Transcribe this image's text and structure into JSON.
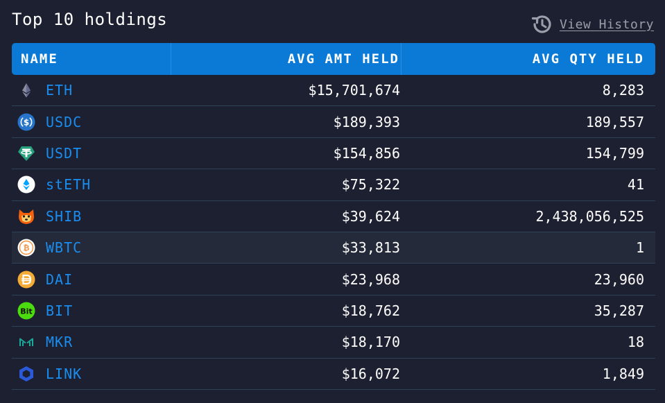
{
  "title": "Top 10 holdings",
  "history_link": "View History",
  "columns": {
    "name": "NAME",
    "amount": "AVG AMT HELD",
    "quantity": "AVG QTY HELD"
  },
  "colors": {
    "background": "#1d2030",
    "header": "#0a7ad6",
    "symbol_link": "#1a8ef0",
    "divider": "#2d4457"
  },
  "rows": [
    {
      "symbol": "ETH",
      "amount": "$15,701,674",
      "quantity": "8,283",
      "icon": "eth-icon"
    },
    {
      "symbol": "USDC",
      "amount": "$189,393",
      "quantity": "189,557",
      "icon": "usdc-icon"
    },
    {
      "symbol": "USDT",
      "amount": "$154,856",
      "quantity": "154,799",
      "icon": "usdt-icon"
    },
    {
      "symbol": "stETH",
      "amount": "$75,322",
      "quantity": "41",
      "icon": "steth-icon"
    },
    {
      "symbol": "SHIB",
      "amount": "$39,624",
      "quantity": "2,438,056,525",
      "icon": "shib-icon"
    },
    {
      "symbol": "WBTC",
      "amount": "$33,813",
      "quantity": "1",
      "icon": "wbtc-icon",
      "highlighted": true
    },
    {
      "symbol": "DAI",
      "amount": "$23,968",
      "quantity": "23,960",
      "icon": "dai-icon"
    },
    {
      "symbol": "BIT",
      "amount": "$18,762",
      "quantity": "35,287",
      "icon": "bit-icon"
    },
    {
      "symbol": "MKR",
      "amount": "$18,170",
      "quantity": "18",
      "icon": "mkr-icon"
    },
    {
      "symbol": "LINK",
      "amount": "$16,072",
      "quantity": "1,849",
      "icon": "link-icon"
    }
  ]
}
